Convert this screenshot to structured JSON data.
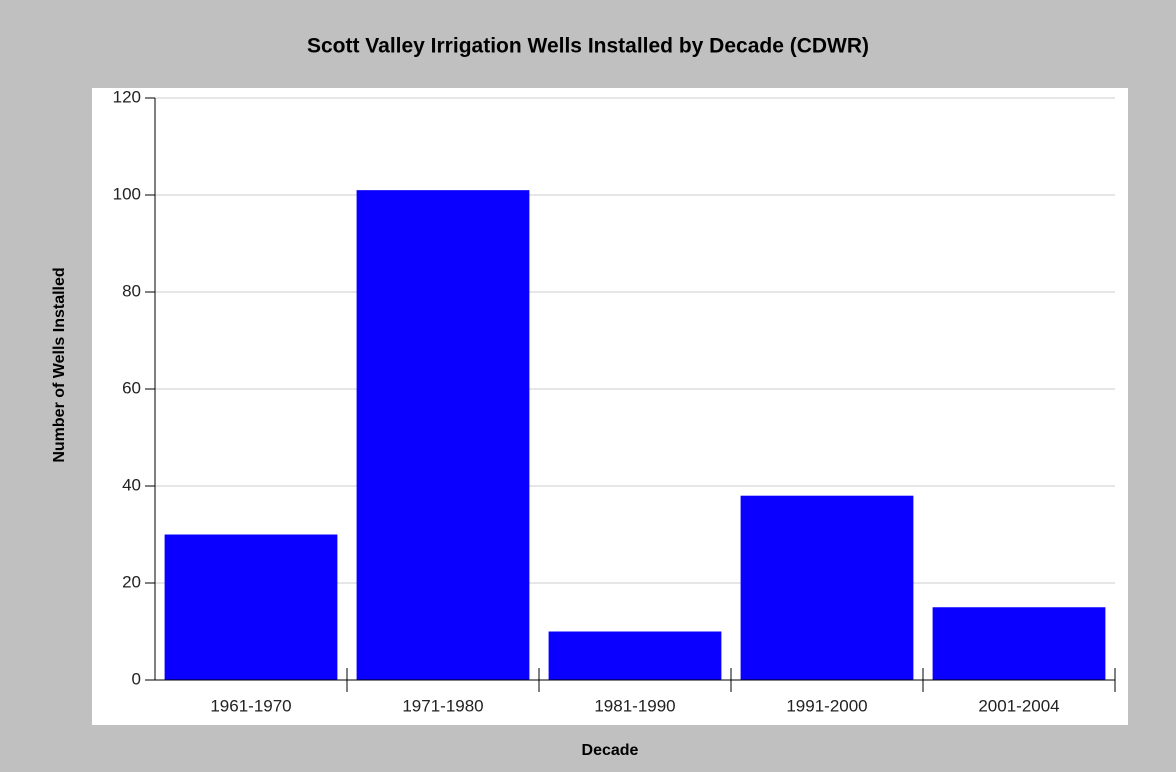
{
  "chart_data": {
    "type": "bar",
    "title": "Scott Valley Irrigation Wells Installed by Decade (CDWR)",
    "x_label": "Decade",
    "y_label": "Number of Wells Installed",
    "categories": [
      "1961-1970",
      "1971-1980",
      "1981-1990",
      "1991-2000",
      "2001-2004"
    ],
    "values": [
      30,
      101,
      10,
      38,
      15
    ],
    "color": "#0a00ff",
    "ylim": [
      0,
      120
    ],
    "yticks": [
      0,
      20,
      40,
      60,
      80,
      100,
      120
    ],
    "grid": true
  }
}
